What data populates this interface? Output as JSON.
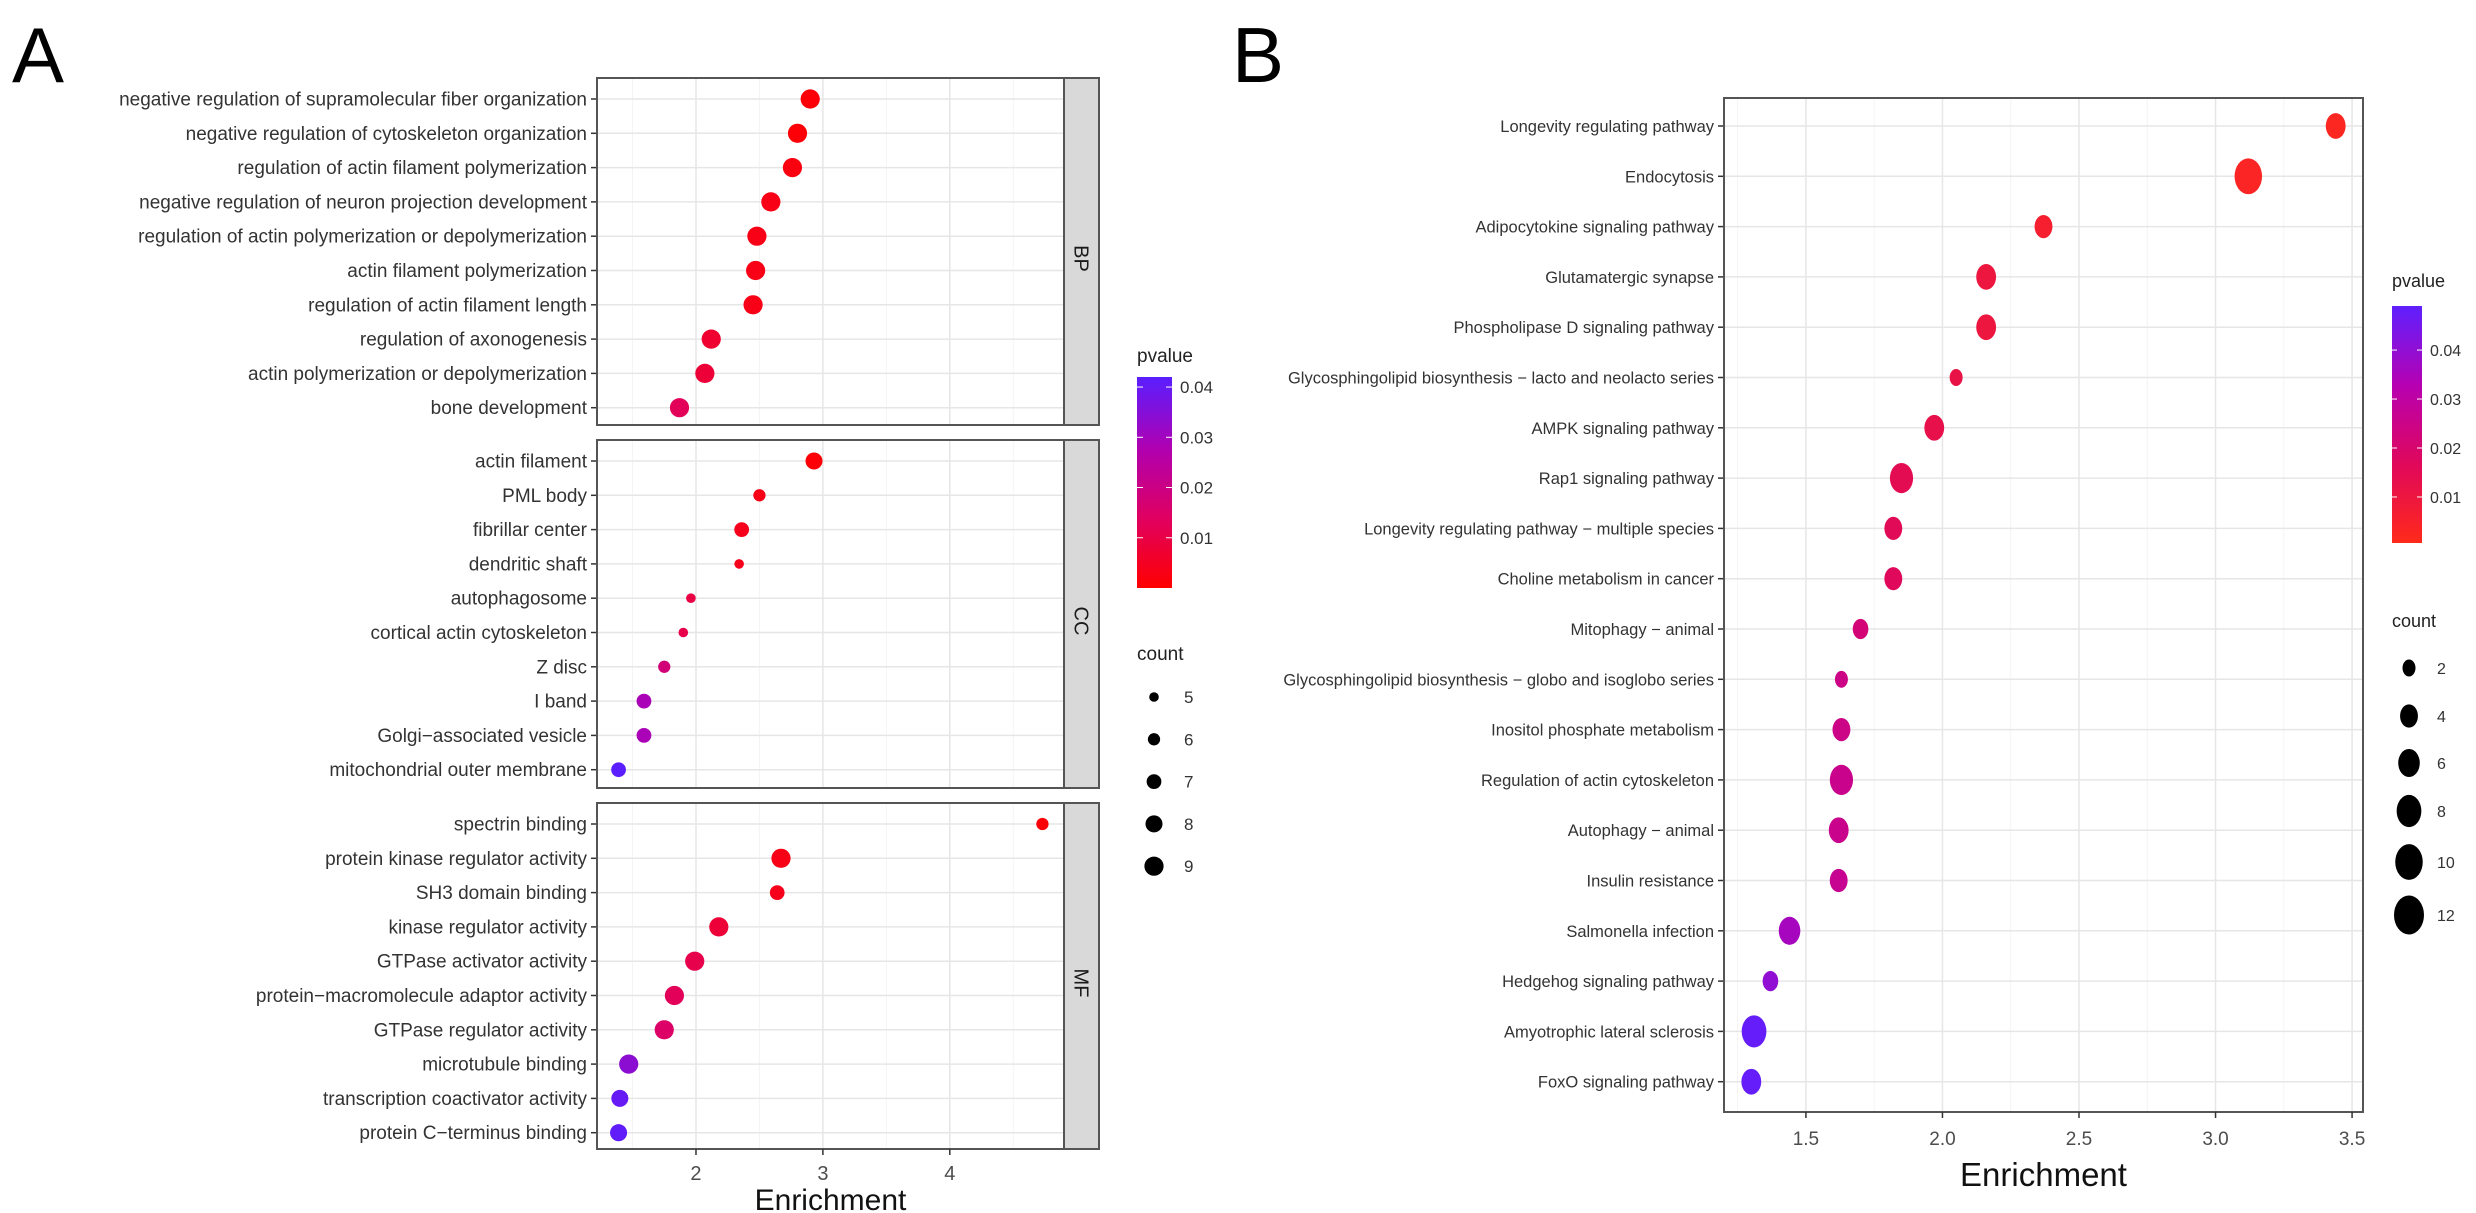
{
  "panel_labels": {
    "A": "A",
    "B": "B"
  },
  "chart_data": [
    {
      "panel": "A",
      "type": "scatter",
      "xlabel": "Enrichment",
      "xlim": [
        1.22,
        4.9
      ],
      "xticks": [
        2,
        3,
        4
      ],
      "xtick_labels": [
        "2",
        "3",
        "4"
      ],
      "grid": true,
      "facets": [
        {
          "name": "BP",
          "terms": [
            "negative regulation of supramolecular fiber organization",
            "negative regulation of cytoskeleton organization",
            "regulation of actin filament polymerization",
            "negative regulation of neuron projection development",
            "regulation of actin polymerization or depolymerization",
            "actin filament polymerization",
            "regulation of actin filament length",
            "regulation of axonogenesis",
            "actin polymerization or depolymerization",
            "bone development"
          ],
          "enrichment": [
            2.9,
            2.8,
            2.76,
            2.59,
            2.48,
            2.47,
            2.45,
            2.12,
            2.07,
            1.87
          ],
          "count": [
            9,
            9,
            9,
            9,
            9,
            9,
            9,
            9,
            9,
            9
          ],
          "pvalue": [
            0.001,
            0.001,
            0.002,
            0.003,
            0.003,
            0.003,
            0.003,
            0.007,
            0.008,
            0.013
          ]
        },
        {
          "name": "CC",
          "terms": [
            "actin filament",
            "PML body",
            "fibrillar center",
            "dendritic shaft",
            "autophagosome",
            "cortical actin cytoskeleton",
            "Z disc",
            "I band",
            "Golgi−associated vesicle",
            "mitochondrial outer membrane"
          ],
          "enrichment": [
            2.93,
            2.5,
            2.36,
            2.34,
            1.96,
            1.9,
            1.75,
            1.59,
            1.59,
            1.39
          ],
          "count": [
            8,
            6,
            7,
            5,
            5,
            5,
            6,
            7,
            7,
            7
          ],
          "pvalue": [
            0.001,
            0.003,
            0.004,
            0.004,
            0.01,
            0.011,
            0.018,
            0.029,
            0.029,
            0.042
          ]
        },
        {
          "name": "MF",
          "terms": [
            "spectrin binding",
            "protein kinase regulator activity",
            "SH3 domain binding",
            "kinase regulator activity",
            "GTPase activator activity",
            "protein−macromolecule adaptor activity",
            "GTPase regulator activity",
            "microtubule binding",
            "transcription coactivator activity",
            "protein C−terminus binding"
          ],
          "enrichment": [
            4.73,
            2.67,
            2.64,
            2.18,
            1.99,
            1.83,
            1.75,
            1.47,
            1.4,
            1.39
          ],
          "count": [
            6,
            9,
            7,
            9,
            9,
            9,
            9,
            9,
            8,
            8
          ],
          "pvalue": [
            0.001,
            0.003,
            0.004,
            0.008,
            0.011,
            0.013,
            0.015,
            0.034,
            0.04,
            0.041
          ]
        }
      ],
      "color_legend": {
        "title": "pvalue",
        "range": [
          0.0,
          0.042
        ],
        "ticks": [
          0.01,
          0.02,
          0.03,
          0.04
        ],
        "tick_labels": [
          "0.01",
          "0.02",
          "0.03",
          "0.04"
        ],
        "low_color": "#ff0000",
        "high_color": "#5a1eff"
      },
      "size_legend": {
        "title": "count",
        "breaks": [
          5,
          6,
          7,
          8,
          9
        ],
        "break_labels": [
          "5",
          "6",
          "7",
          "8",
          "9"
        ]
      }
    },
    {
      "panel": "B",
      "type": "scatter",
      "xlabel": "Enrichment",
      "xlim": [
        1.2,
        3.54
      ],
      "xticks": [
        1.5,
        2.0,
        2.5,
        3.0,
        3.5
      ],
      "xtick_labels": [
        "1.5",
        "2.0",
        "2.5",
        "3.0",
        "3.5"
      ],
      "grid": true,
      "terms": [
        "Longevity regulating pathway",
        "Endocytosis",
        "Adipocytokine signaling pathway",
        "Glutamatergic synapse",
        "Phospholipase D signaling pathway",
        "Glycosphingolipid biosynthesis − lacto and neolacto series",
        "AMPK signaling pathway",
        "Rap1 signaling pathway",
        "Longevity regulating pathway − multiple species",
        "Choline metabolism in cancer",
        "Mitophagy − animal",
        "Glycosphingolipid biosynthesis − globo and isoglobo series",
        "Inositol phosphate metabolism",
        "Regulation of actin cytoskeleton",
        "Autophagy − animal",
        "Insulin resistance",
        "Salmonella infection",
        "Hedgehog signaling pathway",
        "Amyotrophic lateral sclerosis",
        "FoxO signaling pathway"
      ],
      "enrichment": [
        3.44,
        3.12,
        2.37,
        2.16,
        2.16,
        2.05,
        1.97,
        1.85,
        1.82,
        1.82,
        1.7,
        1.63,
        1.63,
        1.63,
        1.62,
        1.62,
        1.44,
        1.37,
        1.31,
        1.3
      ],
      "count": [
        5,
        10,
        4,
        5,
        5,
        2,
        5,
        7,
        4,
        4,
        3,
        2,
        4,
        7,
        5,
        4,
        6,
        3,
        8,
        5
      ],
      "pvalue": [
        0.002,
        0.003,
        0.006,
        0.01,
        0.01,
        0.012,
        0.013,
        0.015,
        0.016,
        0.017,
        0.022,
        0.025,
        0.025,
        0.026,
        0.026,
        0.027,
        0.036,
        0.04,
        0.048,
        0.048
      ],
      "color_legend": {
        "title": "pvalue",
        "range": [
          0.0006,
          0.049
        ],
        "ticks": [
          0.01,
          0.02,
          0.03,
          0.04
        ],
        "tick_labels": [
          "0.01",
          "0.02",
          "0.03",
          "0.04"
        ],
        "low_color": "#ff2a1a",
        "high_color": "#5f20ff"
      },
      "size_legend": {
        "title": "count",
        "breaks": [
          2,
          4,
          6,
          8,
          10,
          12
        ],
        "break_labels": [
          "2",
          "4",
          "6",
          "8",
          "10",
          "12"
        ]
      }
    }
  ]
}
